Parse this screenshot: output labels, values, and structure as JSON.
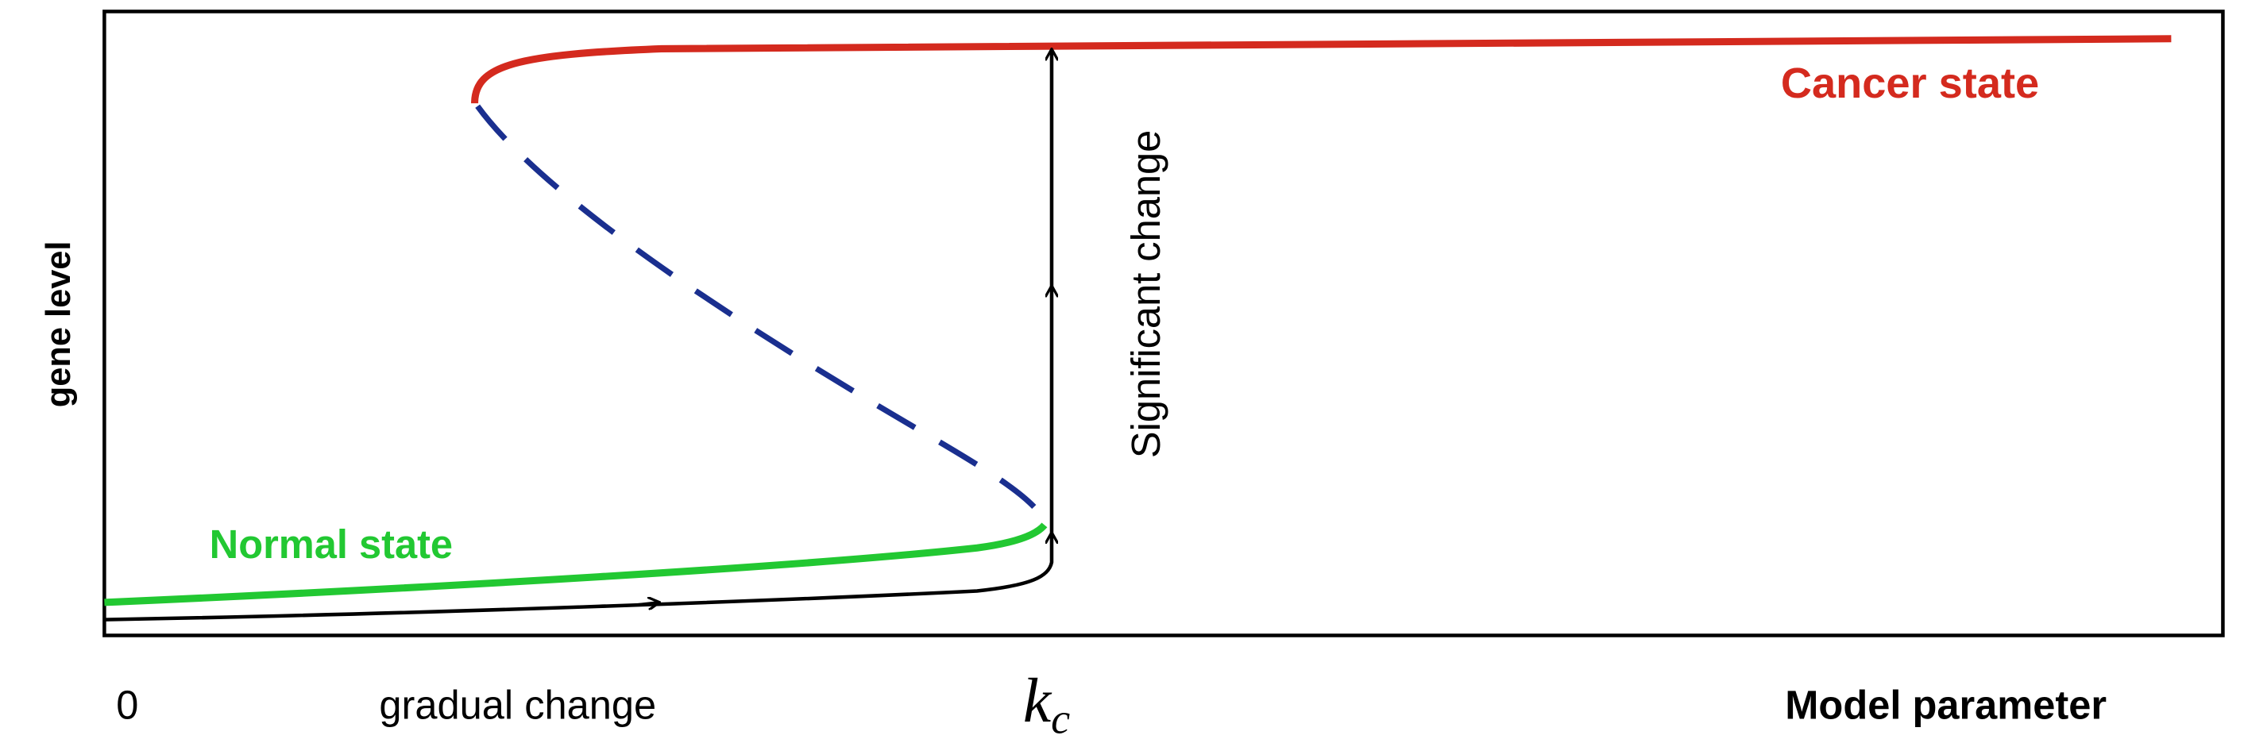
{
  "axes": {
    "y_label": "gene level",
    "x_label": "Model parameter",
    "x_origin": "0",
    "x_marker": {
      "base": "k",
      "subscript": "c"
    }
  },
  "annotations": {
    "gradual": "gradual change",
    "significant": "Significant change",
    "normal": "Normal state",
    "cancer": "Cancer state"
  }
}
